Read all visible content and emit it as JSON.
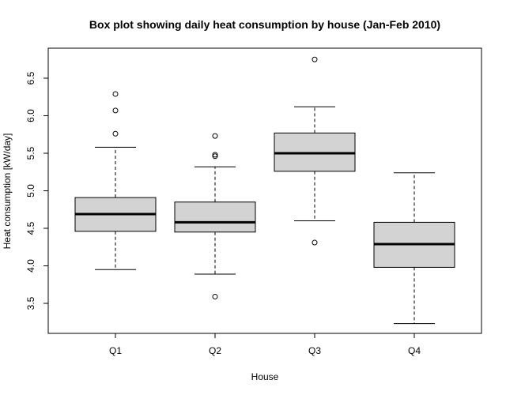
{
  "chart_data": {
    "type": "box",
    "title": "Box plot showing daily heat consumption by house (Jan-Feb 2010)",
    "xlabel": "House",
    "ylabel": "Heat consumption [kW/day]",
    "categories": [
      "Q1",
      "Q2",
      "Q3",
      "Q4"
    ],
    "ylim": [
      3.1,
      6.9
    ],
    "yticks": [
      "3.5",
      "4.0",
      "4.5",
      "5.0",
      "5.5",
      "6.0",
      "6.5"
    ],
    "grid": false,
    "box_fill": "#d3d3d3",
    "boxes": [
      {
        "category": "Q1",
        "whisker_low": 3.95,
        "q1": 4.46,
        "median": 4.69,
        "q3": 4.91,
        "whisker_high": 5.58,
        "outliers": [
          5.76,
          6.07,
          6.29
        ]
      },
      {
        "category": "Q2",
        "whisker_low": 3.89,
        "q1": 4.45,
        "median": 4.58,
        "q3": 4.85,
        "whisker_high": 5.32,
        "outliers": [
          3.59,
          5.46,
          5.48,
          5.73
        ]
      },
      {
        "category": "Q3",
        "whisker_low": 4.6,
        "q1": 5.26,
        "median": 5.5,
        "q3": 5.77,
        "whisker_high": 6.12,
        "outliers": [
          4.31,
          6.75
        ]
      },
      {
        "category": "Q4",
        "whisker_low": 3.23,
        "q1": 3.98,
        "median": 4.29,
        "q3": 4.58,
        "whisker_high": 5.24,
        "outliers": []
      }
    ]
  }
}
